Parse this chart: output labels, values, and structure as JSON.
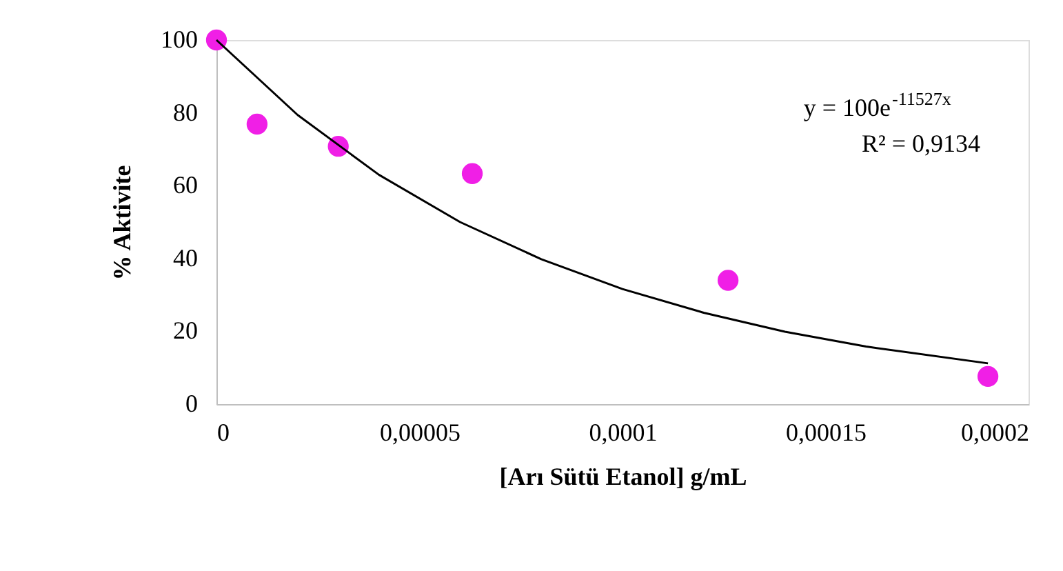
{
  "chart_data": {
    "type": "scatter",
    "xlabel": "[Arı Sütü Etanol]  g/mL",
    "ylabel": "% Aktivite",
    "x": [
      0,
      1e-05,
      3e-05,
      6.3e-05,
      0.000126,
      0.00019
    ],
    "series": [
      {
        "color": "#f01fe6",
        "marker": "circle",
        "values": [
          100,
          76.9,
          70.8,
          63.3,
          34,
          7.6
        ]
      },
      {
        "type": "line",
        "color": "#000000",
        "line_style": "solid",
        "x": [
          0,
          2e-05,
          4e-05,
          6e-05,
          8e-05,
          0.0001,
          0.00012,
          0.00014,
          0.00016,
          0.00019
        ],
        "values": [
          100,
          79.4,
          63,
          50,
          39.8,
          31.6,
          25.1,
          19.9,
          15.8,
          11.2
        ]
      }
    ],
    "xlim": [
      0,
      0.0002
    ],
    "xticks": [
      0,
      {
        "value": 5e-05,
        "label": "0,00005"
      },
      {
        "value": 0.0001,
        "label": "0,0001"
      },
      {
        "value": 0.00015,
        "label": "0,00015"
      },
      {
        "value": 0.0002,
        "label": "0,0002"
      }
    ],
    "ylim": [
      0,
      100
    ],
    "yticks": [
      0,
      20,
      40,
      60,
      80,
      100
    ],
    "grid": false,
    "annotations": [
      "y = 100e$^{-11527x}$",
      "R² = 0,9134"
    ]
  }
}
